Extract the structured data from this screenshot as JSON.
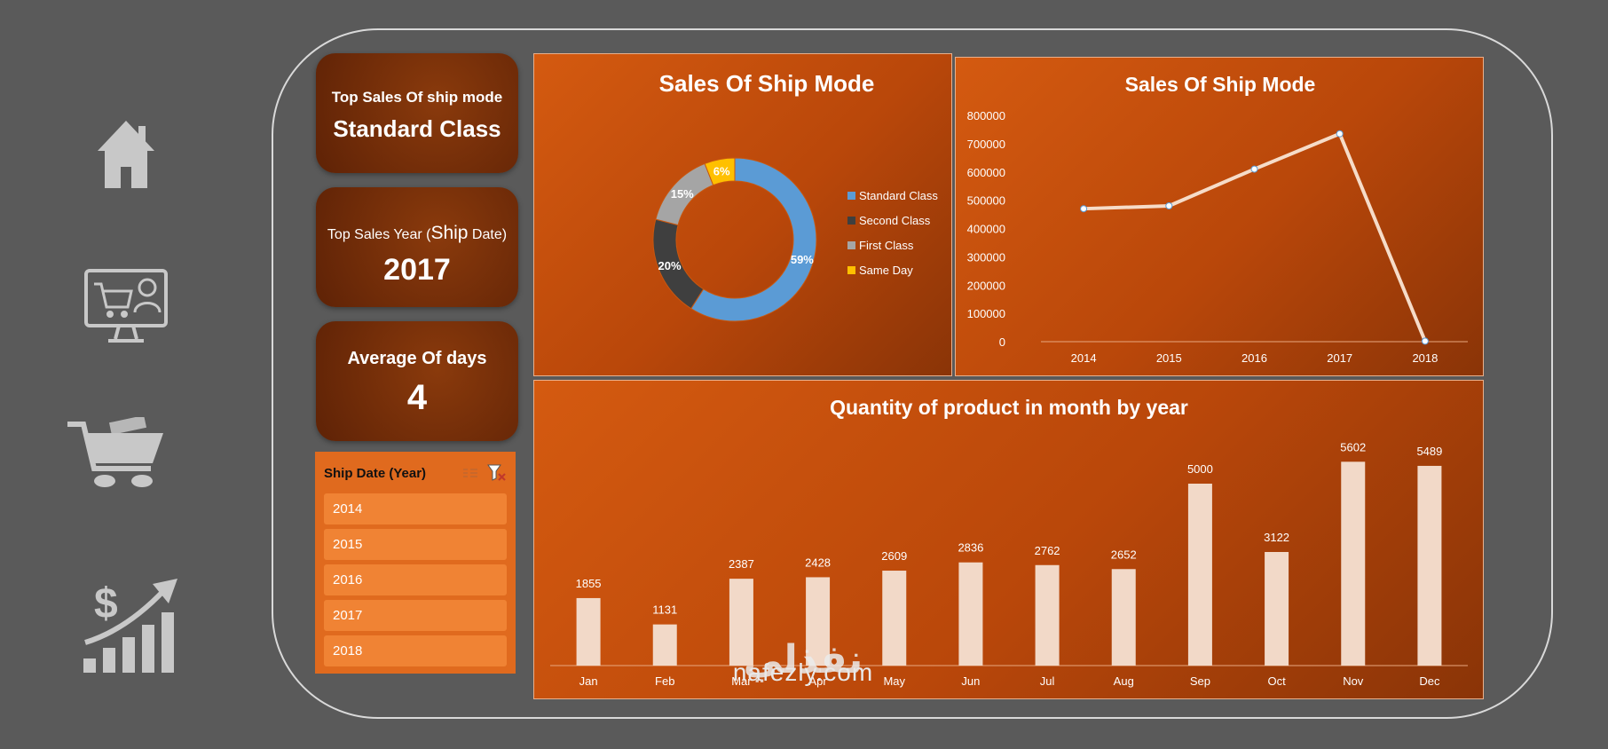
{
  "kpis": {
    "top_ship_mode": {
      "label": "Top Sales Of ship mode",
      "value": "Standard Class"
    },
    "top_year": {
      "label_prefix": "Top Sales Year (",
      "label_big": "Ship",
      "label_suffix": " Date)",
      "value": "2017"
    },
    "avg_days": {
      "label": "Average Of days",
      "value": "4"
    }
  },
  "slicer": {
    "title": "Ship Date (Year)",
    "items": [
      "2014",
      "2015",
      "2016",
      "2017",
      "2018"
    ]
  },
  "nav": {
    "icons": [
      "home-icon",
      "online-shop-icon",
      "shopping-cart-icon",
      "sales-growth-icon"
    ]
  },
  "charts": {
    "donut_title": "Sales Of Ship Mode",
    "line_title": "Sales Of Ship Mode",
    "bar_title": "Quantity of product in month by year"
  },
  "chart_data": [
    {
      "type": "pie",
      "title": "Sales Of Ship Mode",
      "categories": [
        "Standard Class",
        "Second Class",
        "First Class",
        "Same Day"
      ],
      "values": [
        59,
        20,
        15,
        6
      ],
      "labels": [
        "59%",
        "20%",
        "15%",
        "6%"
      ],
      "colors": [
        "#5b9bd5",
        "#3f3f3f",
        "#a5a5a5",
        "#ffc000"
      ],
      "legend": "right"
    },
    {
      "type": "line",
      "title": "Sales Of Ship Mode",
      "x": [
        "2014",
        "2015",
        "2016",
        "2017",
        "2018"
      ],
      "values": [
        470000,
        480000,
        610000,
        735000,
        2000
      ],
      "ylim": [
        0,
        800000
      ],
      "yticks": [
        "0",
        "100000",
        "200000",
        "300000",
        "400000",
        "500000",
        "600000",
        "700000",
        "800000"
      ]
    },
    {
      "type": "bar",
      "title": "Quantity of product in month by year",
      "categories": [
        "Jan",
        "Feb",
        "Mar",
        "Apr",
        "May",
        "Jun",
        "Jul",
        "Aug",
        "Sep",
        "Oct",
        "Nov",
        "Dec"
      ],
      "values": [
        1855,
        1131,
        2387,
        2428,
        2609,
        2836,
        2762,
        2652,
        5000,
        3122,
        5602,
        5489
      ]
    }
  ],
  "watermark": {
    "text": "nafezly.com",
    "arabic": "نفذلي"
  }
}
